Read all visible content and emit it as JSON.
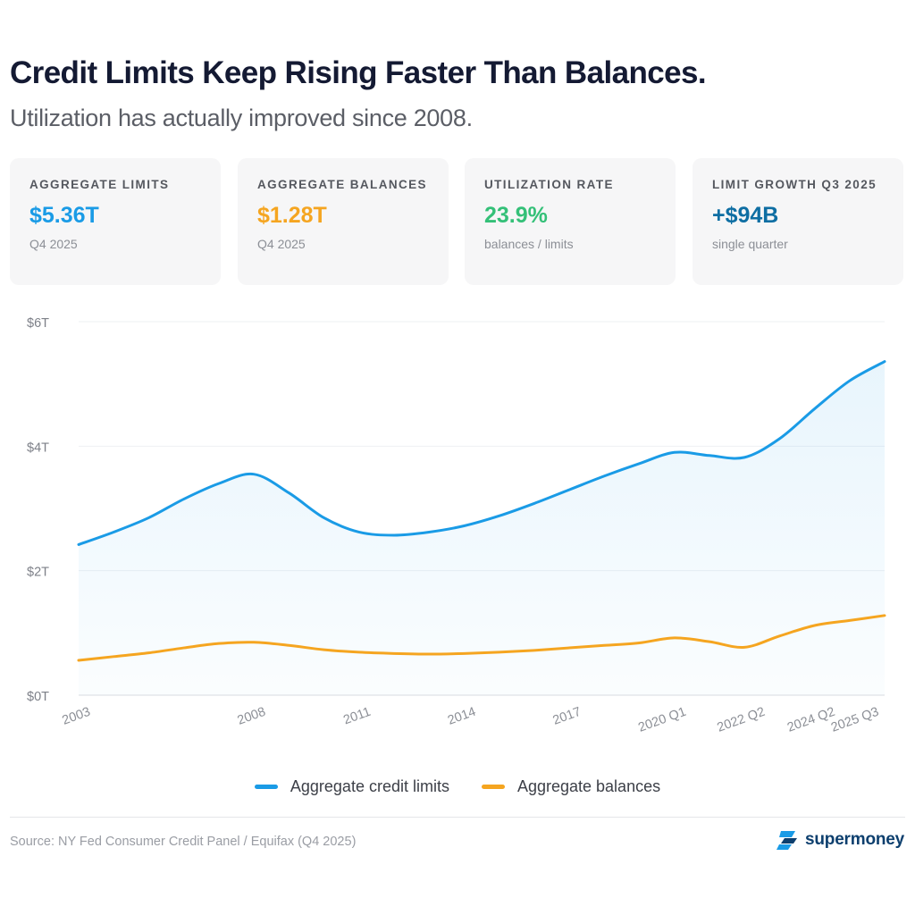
{
  "header": {
    "title": "Credit Limits Keep Rising Faster Than Balances.",
    "subtitle": "Utilization has actually improved since 2008."
  },
  "cards": [
    {
      "label": "AGGREGATE LIMITS",
      "value": "$5.36T",
      "note": "Q4 2025",
      "color": "#1a9be6"
    },
    {
      "label": "AGGREGATE BALANCES",
      "value": "$1.28T",
      "note": "Q4 2025",
      "color": "#f5a520"
    },
    {
      "label": "UTILIZATION RATE",
      "value": "23.9%",
      "note": "balances / limits",
      "color": "#34c078"
    },
    {
      "label": "LIMIT GROWTH Q3 2025",
      "value": "+$94B",
      "note": "single quarter",
      "color": "#0e6ea3"
    }
  ],
  "chart_data": {
    "type": "area",
    "title": "",
    "xlabel": "",
    "ylabel": "",
    "y_unit": "trillions of dollars",
    "ylim": [
      0,
      6
    ],
    "y_ticks": [
      0,
      2,
      4,
      6
    ],
    "y_tick_labels": [
      "$0T",
      "$2T",
      "$4T",
      "$6T"
    ],
    "x_tick_labels": [
      "2003",
      "2008",
      "2011",
      "2014",
      "2017",
      "2020 Q1",
      "2022 Q2",
      "2024 Q2",
      "2025 Q3"
    ],
    "x_tick_positions": [
      0,
      5,
      8,
      11,
      14,
      17,
      19.25,
      21.25,
      22.5
    ],
    "xlim": [
      0,
      23
    ],
    "grid": true,
    "legend_position": "bottom",
    "series": [
      {
        "name": "Aggregate credit limits",
        "color": "#1a9be6",
        "fill": true,
        "x": [
          0,
          1,
          2,
          3,
          4,
          5,
          6,
          7,
          8,
          9,
          10,
          11,
          12,
          13,
          14,
          15,
          16,
          17,
          18,
          19,
          20,
          21,
          22,
          23
        ],
        "values": [
          2.42,
          2.62,
          2.85,
          3.15,
          3.4,
          3.55,
          3.25,
          2.85,
          2.62,
          2.57,
          2.62,
          2.72,
          2.88,
          3.08,
          3.3,
          3.52,
          3.72,
          3.9,
          3.85,
          3.82,
          4.12,
          4.6,
          5.05,
          5.36
        ]
      },
      {
        "name": "Aggregate balances",
        "color": "#f5a520",
        "fill": false,
        "x": [
          0,
          1,
          2,
          3,
          4,
          5,
          6,
          7,
          8,
          9,
          10,
          11,
          12,
          13,
          14,
          15,
          16,
          17,
          18,
          19,
          20,
          21,
          22,
          23
        ],
        "values": [
          0.56,
          0.62,
          0.68,
          0.76,
          0.83,
          0.85,
          0.8,
          0.73,
          0.69,
          0.67,
          0.66,
          0.67,
          0.69,
          0.72,
          0.76,
          0.8,
          0.84,
          0.92,
          0.86,
          0.77,
          0.95,
          1.12,
          1.2,
          1.28
        ]
      }
    ]
  },
  "footer": {
    "source": "Source: NY Fed Consumer Credit Panel / Equifax (Q4 2025)",
    "logo_text": "supermoney"
  }
}
